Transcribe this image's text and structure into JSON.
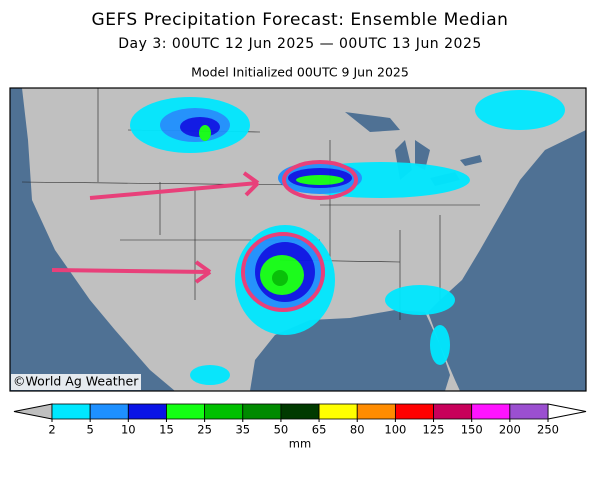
{
  "header": {
    "title": "GEFS Precipitation Forecast: Ensemble Median",
    "subtitle": "Day 3: 00UTC 12 Jun 2025 — 00UTC 13 Jun 2025",
    "initialized": "Model Initialized 00UTC 9 Jun 2025"
  },
  "map": {
    "credit": "©World Ag Weather"
  },
  "colorbar": {
    "levels": [
      2,
      5,
      10,
      15,
      25,
      35,
      50,
      65,
      80,
      100,
      125,
      150,
      200,
      250
    ],
    "colors": [
      "#00e8ff",
      "#1e90ff",
      "#0a14e6",
      "#14ff14",
      "#00c000",
      "#008a00",
      "#003a00",
      "#ffff00",
      "#ff8c00",
      "#ff0000",
      "#c8005a",
      "#ff14ff",
      "#9b4fd0"
    ],
    "under_color": "#bfbfbf",
    "over_color": "#ffffff",
    "unit": "mm"
  }
}
